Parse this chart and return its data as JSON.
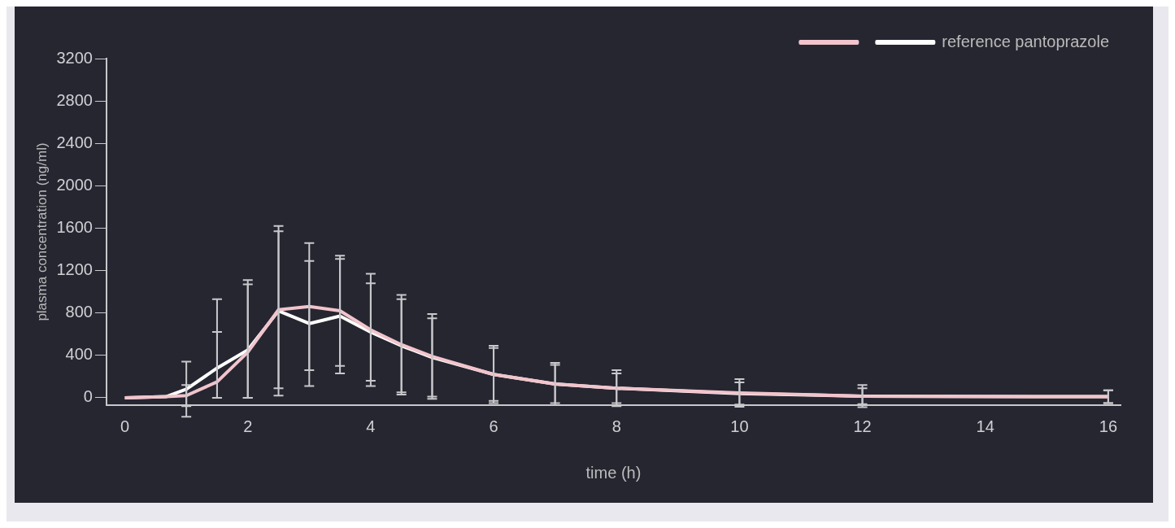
{
  "chart_data": {
    "type": "line",
    "xlabel": "time (h)",
    "ylabel": "plasma concentration (ng/ml)",
    "x": [
      0,
      0.67,
      1,
      1.5,
      2,
      2.5,
      3,
      3.5,
      4,
      4.5,
      5,
      6,
      7,
      8,
      10,
      12,
      16
    ],
    "series": [
      {
        "color": "#f2c4cc",
        "values": [
          0,
          10,
          20,
          150,
          430,
          830,
          860,
          820,
          640,
          500,
          390,
          220,
          130,
          90,
          45,
          15,
          10
        ],
        "errors": [
          null,
          null,
          100,
          [
            0,
            620
          ],
          [
            0,
            1070
          ],
          740,
          600,
          520,
          530,
          470,
          400,
          250,
          200,
          170,
          130,
          105,
          60
        ]
      },
      {
        "name": "reference pantoprazole",
        "color": "#ffffff",
        "values": [
          0,
          10,
          80,
          280,
          450,
          820,
          700,
          770,
          620,
          490,
          380,
          220,
          130,
          90,
          40,
          15,
          10
        ],
        "errors": [
          null,
          null,
          260,
          [
            0,
            930
          ],
          [
            0,
            1110
          ],
          800,
          590,
          540,
          460,
          440,
          370,
          270,
          180,
          140,
          105,
          75,
          60
        ]
      }
    ],
    "xlim": [
      -0.3,
      16.2
    ],
    "xticks": [
      0,
      2,
      4,
      6,
      8,
      10,
      12,
      14,
      16
    ],
    "ylim": [
      -70,
      3200
    ],
    "yticks": [
      0,
      400,
      800,
      1200,
      1600,
      2000,
      2400,
      2800,
      3200
    ],
    "legend": "top right",
    "marker": "none"
  }
}
